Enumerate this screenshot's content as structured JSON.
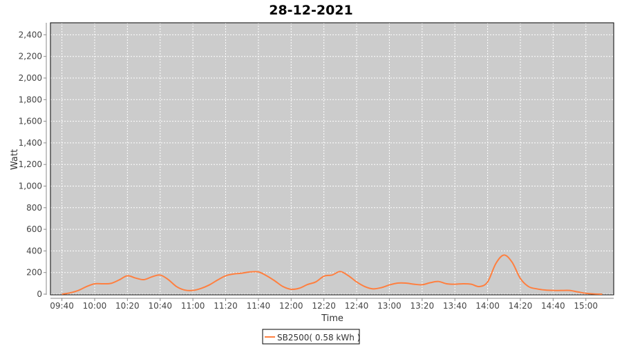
{
  "chart_data": {
    "type": "line",
    "title": "28-12-2021",
    "xlabel": "Time",
    "ylabel": "Watt",
    "ylim": [
      0,
      2510
    ],
    "xlim": [
      "09:33",
      "15:17"
    ],
    "yticks": [
      0,
      200,
      400,
      600,
      800,
      1000,
      1200,
      1400,
      1600,
      1800,
      2000,
      2200,
      2400
    ],
    "ytick_labels": [
      "0",
      "200",
      "400",
      "600",
      "800",
      "1,000",
      "1,200",
      "1,400",
      "1,600",
      "1,800",
      "2,000",
      "2,200",
      "2,400"
    ],
    "xtick_labels": [
      "09:40",
      "10:00",
      "10:20",
      "10:40",
      "11:00",
      "11:20",
      "11:40",
      "12:00",
      "12:20",
      "12:40",
      "13:00",
      "13:20",
      "13:40",
      "14:00",
      "14:20",
      "14:40",
      "15:00"
    ],
    "grid": true,
    "legend_position": "bottom",
    "background": "#cccccc",
    "series": [
      {
        "name": "SB2500( 0.58 kWh )",
        "color": "#ff7f3f",
        "x": [
          "09:40",
          "09:45",
          "09:50",
          "09:55",
          "10:00",
          "10:05",
          "10:10",
          "10:15",
          "10:20",
          "10:25",
          "10:30",
          "10:35",
          "10:40",
          "10:45",
          "10:50",
          "10:55",
          "11:00",
          "11:05",
          "11:10",
          "11:15",
          "11:20",
          "11:25",
          "11:30",
          "11:35",
          "11:40",
          "11:45",
          "11:50",
          "11:55",
          "12:00",
          "12:05",
          "12:10",
          "12:15",
          "12:20",
          "12:25",
          "12:30",
          "12:35",
          "12:40",
          "12:45",
          "12:50",
          "12:55",
          "13:00",
          "13:05",
          "13:10",
          "13:15",
          "13:20",
          "13:25",
          "13:30",
          "13:35",
          "13:40",
          "13:45",
          "13:50",
          "13:55",
          "14:00",
          "14:05",
          "14:10",
          "14:15",
          "14:20",
          "14:25",
          "14:30",
          "14:35",
          "14:40",
          "14:45",
          "14:50",
          "14:55",
          "15:00",
          "15:05",
          "15:10"
        ],
        "values": [
          0,
          12,
          34,
          70,
          96,
          96,
          100,
          132,
          170,
          149,
          134,
          160,
          177,
          134,
          70,
          38,
          34,
          53,
          85,
          130,
          170,
          187,
          194,
          206,
          206,
          170,
          123,
          70,
          45,
          55,
          89,
          113,
          166,
          177,
          209,
          170,
          113,
          70,
          49,
          60,
          85,
          102,
          102,
          92,
          87,
          106,
          117,
          96,
          92,
          96,
          92,
          70,
          113,
          283,
          362,
          294,
          145,
          70,
          49,
          38,
          34,
          34,
          34,
          21,
          8,
          2,
          0
        ]
      }
    ]
  }
}
